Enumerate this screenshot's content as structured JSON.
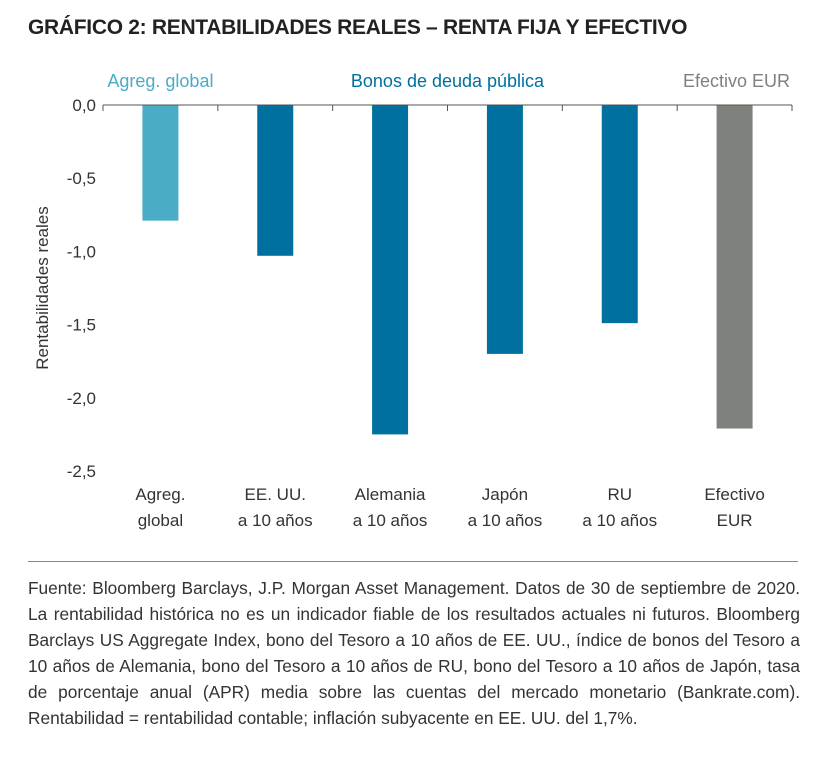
{
  "title": "GRÁFICO 2: RENTABILIDADES REALES – RENTA FIJA Y EFECTIVO",
  "chart_data": {
    "type": "bar",
    "title": "GRÁFICO 2: RENTABILIDADES REALES – RENTA FIJA Y EFECTIVO",
    "ylabel": "Rentabilidades reales",
    "xlabel": "",
    "ylim": [
      -2.5,
      0.0
    ],
    "yticks": [
      "0,0",
      "-0,5",
      "-1,0",
      "-1,5",
      "-2,0",
      "-2,5"
    ],
    "ytick_values": [
      0,
      -0.5,
      -1.0,
      -1.5,
      -2.0,
      -2.5
    ],
    "grid": false,
    "categories": [
      [
        "Agreg.",
        "global"
      ],
      [
        "EE. UU.",
        "a 10 años"
      ],
      [
        "Alemania",
        "a 10 años"
      ],
      [
        "Japón",
        "a 10 años"
      ],
      [
        "RU",
        "a 10 años"
      ],
      [
        "Efectivo",
        "EUR"
      ]
    ],
    "values": [
      -0.79,
      -1.03,
      -2.25,
      -1.7,
      -1.49,
      -2.21
    ],
    "bar_colors": [
      "#4bacc6",
      "#00709f",
      "#00709f",
      "#00709f",
      "#00709f",
      "#7f817c"
    ],
    "group_labels": [
      {
        "text": "Agreg. global",
        "color": "#4bacc6",
        "category_index": 0
      },
      {
        "text": "Bonos de deuda pública",
        "color": "#00709f",
        "category_index": 2.5
      },
      {
        "text": "Efectivo EUR",
        "color": "#7f817c",
        "category_index": 5
      }
    ]
  },
  "footnote": "Fuente: Bloomberg Barclays, J.P. Morgan Asset Management. Datos de 30 de septiembre de 2020. La rentabilidad histórica no es un indicador fiable de los resultados actuales ni futuros.  Bloomberg Barclays US Aggregate Index, bono del Tesoro a 10 años de EE. UU., índice de bonos del Tesoro a 10 años de Alemania, bono del Tesoro a 10 años de RU, bono del Tesoro a 10 años de Japón, tasa de porcentaje anual (APR) media sobre las cuentas del mercado monetario (Bankrate.com). Rentabilidad = rentabilidad contable; inflación subyacente en EE. UU. del 1,7%."
}
